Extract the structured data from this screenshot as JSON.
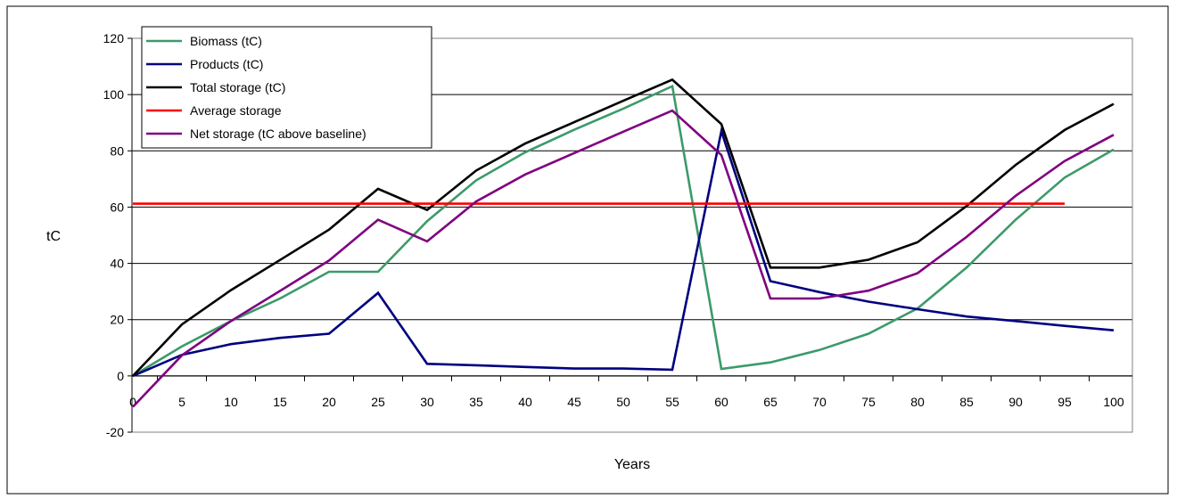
{
  "chart_data": {
    "type": "line",
    "title": "",
    "xlabel": "Years",
    "ylabel": "tC",
    "ylim": [
      -20,
      120
    ],
    "yticks": [
      -20,
      0,
      20,
      40,
      60,
      80,
      100,
      120
    ],
    "x": [
      0,
      5,
      10,
      15,
      20,
      25,
      30,
      35,
      40,
      45,
      50,
      55,
      60,
      65,
      70,
      75,
      80,
      85,
      90,
      95,
      100
    ],
    "grid": "horizontal",
    "legend_position": "top-left",
    "series": [
      {
        "name": "Biomass (tC)",
        "color": "#3c9a6a",
        "values": [
          0,
          10.5,
          19.5,
          27.5,
          37,
          37,
          55,
          69.5,
          79.5,
          87.5,
          95,
          103,
          2.5,
          4.8,
          9.2,
          15,
          24,
          38.5,
          55.5,
          70.5,
          80.5
        ]
      },
      {
        "name": "Products (tC)",
        "color": "#000080",
        "values": [
          0,
          7.5,
          11.3,
          13.5,
          15,
          29.5,
          4.3,
          3.8,
          3.2,
          2.6,
          2.6,
          2.2,
          87,
          33.7,
          29.8,
          26.4,
          23.7,
          21.1,
          19.5,
          17.8,
          16.2
        ]
      },
      {
        "name": "Total storage (tC)",
        "color": "#000000",
        "values": [
          0,
          18.3,
          30.5,
          41.2,
          52,
          66.5,
          59,
          73,
          82.6,
          90.2,
          97.8,
          105.3,
          89.5,
          38.5,
          38.5,
          41.3,
          47.5,
          60.4,
          75,
          87.4,
          96.7
        ]
      },
      {
        "name": "Average storage",
        "color": "#ff0000",
        "x": [
          0,
          95
        ],
        "values": [
          61.2,
          61.2
        ]
      },
      {
        "name": "Net storage (tC above baseline)",
        "color": "#800080",
        "values": [
          -11,
          7.3,
          19.5,
          30.2,
          41,
          55.5,
          47.8,
          62,
          71.6,
          79.2,
          86.8,
          94.3,
          78.5,
          27.5,
          27.5,
          30.3,
          36.5,
          49.4,
          64,
          76.4,
          85.7
        ]
      }
    ]
  }
}
